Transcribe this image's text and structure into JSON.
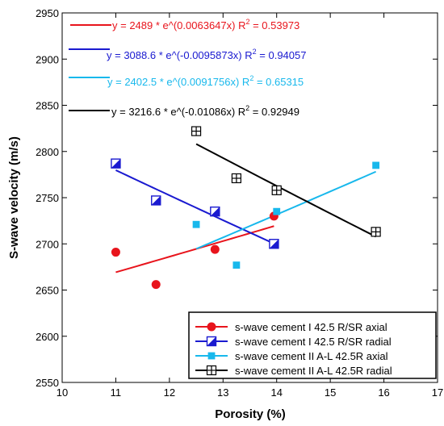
{
  "chart_data": {
    "type": "scatter",
    "title": "",
    "xlabel": "Porosity (%)",
    "ylabel": "S-wave velocity (m/s)",
    "xlim": [
      10,
      17
    ],
    "ylim": [
      2550,
      2950
    ],
    "xticks": [
      10,
      11,
      12,
      13,
      14,
      15,
      16,
      17
    ],
    "yticks": [
      2550,
      2600,
      2650,
      2700,
      2750,
      2800,
      2850,
      2900,
      2950
    ],
    "grid": false,
    "legend_position": "bottom-right",
    "series": [
      {
        "name": "s-wave cement I 42.5 R/SR axial",
        "color": "#e8141c",
        "marker": "filled-circle",
        "points": [
          [
            11.0,
            2691
          ],
          [
            11.75,
            2656
          ],
          [
            12.85,
            2694
          ],
          [
            13.95,
            2730
          ]
        ],
        "fit": {
          "x_range": [
            11.0,
            13.95
          ],
          "equation": "y = 2489 * e^(0.0063647x)",
          "r2_symbol": "R",
          "r2_sup": "2",
          "r2_value": "= 0.53973"
        }
      },
      {
        "name": "s-wave cement I 42.5 R/SR radial",
        "color": "#1a1ad0",
        "marker": "half-filled-square",
        "points": [
          [
            11.0,
            2787
          ],
          [
            11.75,
            2747
          ],
          [
            12.85,
            2735
          ],
          [
            13.95,
            2700
          ]
        ],
        "fit": {
          "x_range": [
            11.0,
            13.95
          ],
          "equation": "y = 3088.6 * e^(-0.0095873x)",
          "r2_symbol": "R",
          "r2_sup": "2",
          "r2_value": "= 0.94057"
        }
      },
      {
        "name": "s-wave cement II  A-L 42.5R  axial",
        "color": "#18b8ec",
        "marker": "filled-square",
        "points": [
          [
            12.5,
            2721
          ],
          [
            13.25,
            2677
          ],
          [
            14.0,
            2735
          ],
          [
            15.85,
            2785
          ]
        ],
        "fit": {
          "x_range": [
            12.5,
            15.85
          ],
          "equation": "y = 2402.5 * e^(0.0091756x)",
          "r2_symbol": "R",
          "r2_sup": "2",
          "r2_value": "= 0.65315"
        }
      },
      {
        "name": "s-wave cement II  A-L 42.5R radial",
        "color": "#000000",
        "marker": "crossed-square",
        "points": [
          [
            12.5,
            2822
          ],
          [
            13.25,
            2771
          ],
          [
            14.0,
            2758
          ],
          [
            15.85,
            2713
          ]
        ],
        "fit": {
          "x_range": [
            12.5,
            15.85
          ],
          "equation": "y = 3216.6 * e^(-0.01086x)",
          "r2_symbol": "R",
          "r2_sup": "2",
          "r2_value": "= 0.92949"
        }
      }
    ]
  }
}
